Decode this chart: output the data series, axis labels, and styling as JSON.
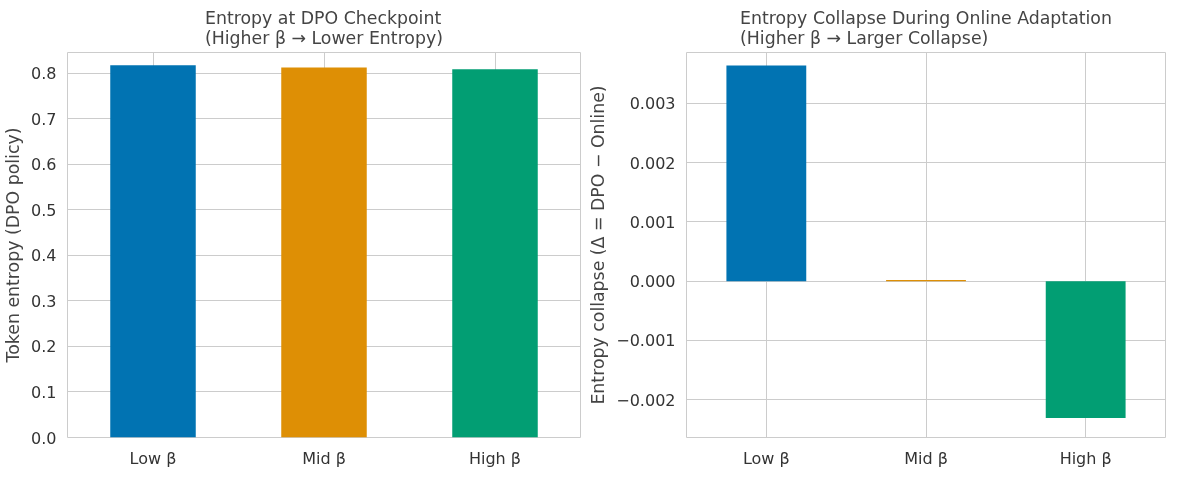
{
  "chart_data": [
    {
      "type": "bar",
      "title": "Entropy at DPO Checkpoint\n(Higher β → Lower Entropy)",
      "ylabel": "Token entropy (DPO policy)",
      "categories": [
        "Low β",
        "Mid β",
        "High β"
      ],
      "values": [
        0.818,
        0.813,
        0.809
      ],
      "colors": [
        "#0173b2",
        "#de8f05",
        "#029e73"
      ],
      "ylim": [
        0,
        0.846
      ],
      "yticks": [
        {
          "value": 0,
          "label": "0.0"
        },
        0.1,
        0.2,
        0.3,
        0.4,
        0.5,
        0.6,
        0.7,
        0.8
      ],
      "grid": true
    },
    {
      "type": "bar",
      "title": "Entropy Collapse During Online Adaptation\n(Higher β → Larger Collapse)",
      "ylabel": "Entropy collapse (Δ = DPO − Online)",
      "categories": [
        "Low β",
        "Mid β",
        "High β"
      ],
      "values": [
        0.00364,
        2e-05,
        -0.00231
      ],
      "colors": [
        "#0173b2",
        "#de8f05",
        "#029e73"
      ],
      "ylim": [
        -0.00264,
        0.00386
      ],
      "yticks": [
        {
          "value": -0.002,
          "label": "−0.002"
        },
        {
          "value": -0.001,
          "label": "−0.001"
        },
        {
          "value": 0,
          "label": "0.000"
        },
        0.001,
        0.002,
        0.003
      ],
      "grid": true
    }
  ]
}
